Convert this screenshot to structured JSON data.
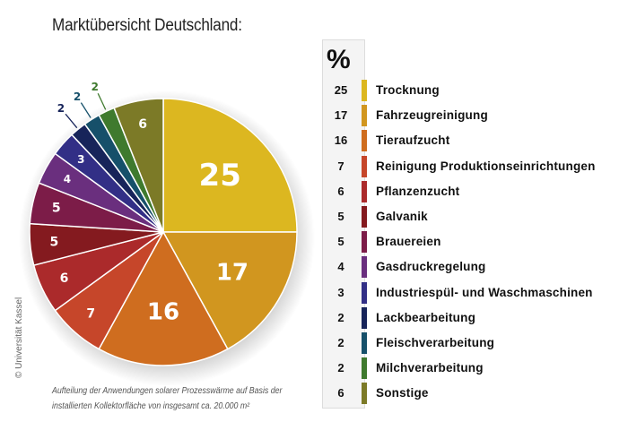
{
  "title": "Marktübersicht Deutschland:",
  "copyright": "© Universität Kassel",
  "caption": [
    "Aufteilung der Anwendungen solarer Prozesswärme auf Basis der",
    "installierten Kollektorfläche von insgesamt ca. 20.000 m²"
  ],
  "legend_header": "%",
  "chart_data": {
    "type": "pie",
    "unit": "%",
    "slices": [
      {
        "label": "Trocknung",
        "value": 25,
        "color": "#dcb720"
      },
      {
        "label": "Fahrzeugreinigung",
        "value": 17,
        "color": "#d1961f"
      },
      {
        "label": "Tieraufzucht",
        "value": 16,
        "color": "#cf6d1f"
      },
      {
        "label": "Reinigung Produktionseinrichtungen",
        "value": 7,
        "color": "#c6462a"
      },
      {
        "label": "Pflanzenzucht",
        "value": 6,
        "color": "#ab2a2b"
      },
      {
        "label": "Galvanik",
        "value": 5,
        "color": "#841a1f"
      },
      {
        "label": "Brauereien",
        "value": 5,
        "color": "#7c1c48"
      },
      {
        "label": "Gasdruckregelung",
        "value": 4,
        "color": "#6a2f7e"
      },
      {
        "label": "Industriespül- und Waschmaschinen",
        "value": 3,
        "color": "#322f86"
      },
      {
        "label": "Lackbearbeitung",
        "value": 2,
        "color": "#17245a"
      },
      {
        "label": "Fleischverarbeitung",
        "value": 2,
        "color": "#16506a"
      },
      {
        "label": "Milchverarbeitung",
        "value": 2,
        "color": "#3f7a2e"
      },
      {
        "label": "Sonstige",
        "value": 6,
        "color": "#7c7a27"
      }
    ]
  }
}
